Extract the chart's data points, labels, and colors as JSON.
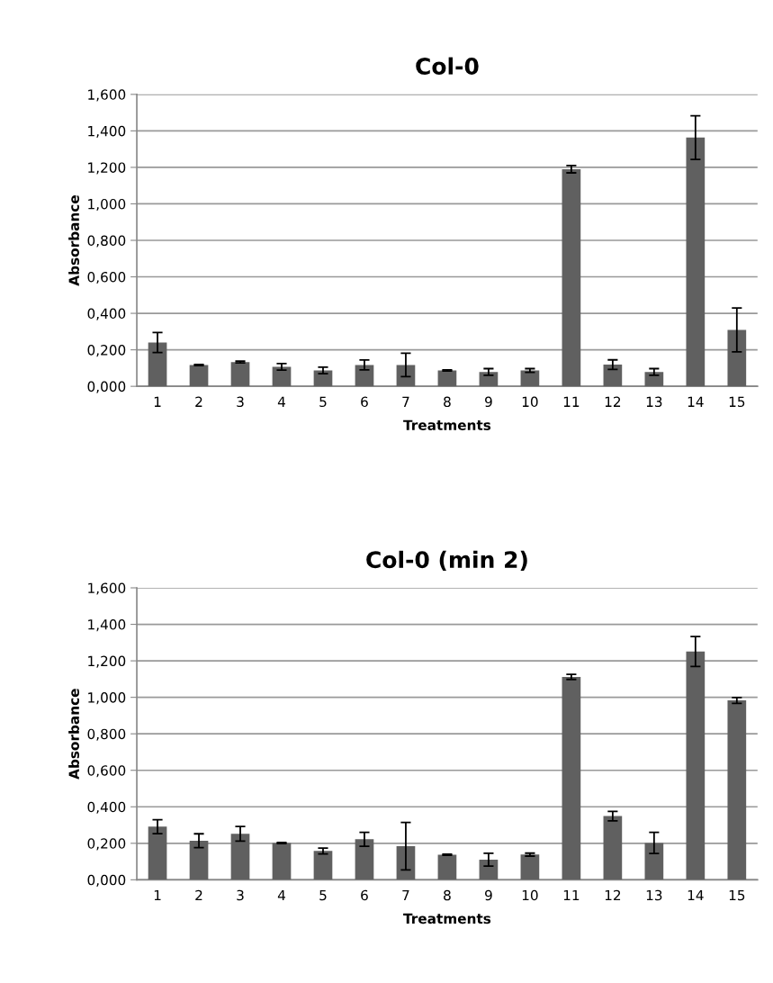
{
  "chart_data": [
    {
      "type": "bar",
      "title": "Col-0",
      "xlabel": "Treatments",
      "ylabel": "Absorbance",
      "categories": [
        "1",
        "2",
        "3",
        "4",
        "5",
        "6",
        "7",
        "8",
        "9",
        "10",
        "11",
        "12",
        "13",
        "14",
        "15"
      ],
      "values": [
        0.24,
        0.117,
        0.133,
        0.107,
        0.087,
        0.117,
        0.117,
        0.087,
        0.079,
        0.087,
        1.19,
        0.119,
        0.079,
        1.363,
        0.309
      ],
      "errors": [
        0.055,
        0.003,
        0.005,
        0.018,
        0.018,
        0.027,
        0.064,
        0.003,
        0.018,
        0.01,
        0.02,
        0.026,
        0.018,
        0.12,
        0.12
      ],
      "color": "#606060",
      "ylim": [
        0,
        1.6
      ],
      "yticks": [
        {
          "value": 0,
          "label": "0,000"
        },
        {
          "value": 0.2,
          "label": "0,200"
        },
        {
          "value": 0.4,
          "label": "0,400"
        },
        {
          "value": 0.6,
          "label": "0,600"
        },
        {
          "value": 0.8,
          "label": "0,800"
        },
        {
          "value": 1.0,
          "label": "1,000"
        },
        {
          "value": 1.2,
          "label": "1,200"
        },
        {
          "value": 1.4,
          "label": "1,400"
        },
        {
          "value": 1.6,
          "label": "1,600"
        }
      ],
      "grid": "y"
    },
    {
      "type": "bar",
      "title": "Col-0 (min 2)",
      "xlabel": "Treatments",
      "ylabel": "Absorbance",
      "categories": [
        "1",
        "2",
        "3",
        "4",
        "5",
        "6",
        "7",
        "8",
        "9",
        "10",
        "11",
        "12",
        "13",
        "14",
        "15"
      ],
      "values": [
        0.291,
        0.214,
        0.252,
        0.202,
        0.158,
        0.222,
        0.184,
        0.137,
        0.11,
        0.138,
        1.112,
        0.349,
        0.202,
        1.251,
        0.983
      ],
      "errors": [
        0.038,
        0.038,
        0.04,
        0.003,
        0.016,
        0.038,
        0.13,
        0.003,
        0.035,
        0.008,
        0.014,
        0.026,
        0.058,
        0.082,
        0.016
      ],
      "color": "#606060",
      "ylim": [
        0,
        1.6
      ],
      "yticks": [
        {
          "value": 0,
          "label": "0,000"
        },
        {
          "value": 0.2,
          "label": "0,200"
        },
        {
          "value": 0.4,
          "label": "0,400"
        },
        {
          "value": 0.6,
          "label": "0,600"
        },
        {
          "value": 0.8,
          "label": "0,800"
        },
        {
          "value": 1.0,
          "label": "1,000"
        },
        {
          "value": 1.2,
          "label": "1,200"
        },
        {
          "value": 1.4,
          "label": "1,400"
        },
        {
          "value": 1.6,
          "label": "1,600"
        }
      ],
      "grid": "y"
    }
  ]
}
